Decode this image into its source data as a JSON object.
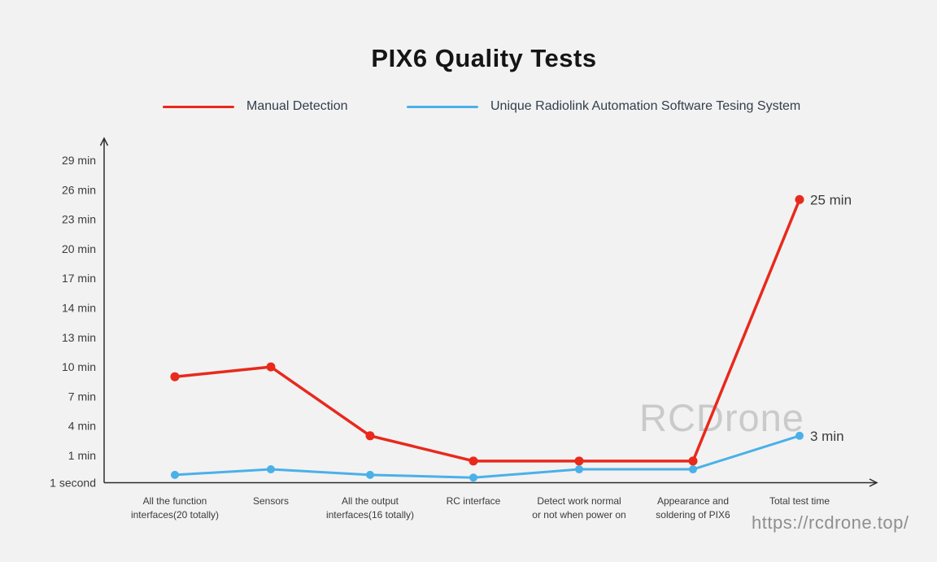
{
  "page": {
    "watermark": "RCDrone",
    "url": "https://rcdrone.top/"
  },
  "colors": {
    "background": "#f2f2f2",
    "title": "#151515",
    "text": "#3b3b3b",
    "axis": "#2c2c2c",
    "legend_text": "#333e4c",
    "watermark": "#cacaca",
    "url": "#8f8f8f"
  },
  "chart_data": {
    "type": "line",
    "title": "PIX6 Quality Tests",
    "legend_position": "top",
    "grid": false,
    "axis_arrows": true,
    "categories": [
      "All the function\ninterfaces(20 totally)",
      "Sensors",
      "All the output\ninterfaces(16 totally)",
      "RC interface",
      "Detect work normal\nor not when power on",
      "Appearance and\nsoldering of PIX6",
      "Total test time"
    ],
    "y_axis": {
      "tick_labels": [
        "1 second",
        "1 min",
        "4 min",
        "7 min",
        "10 min",
        "13 min",
        "14 min",
        "17 min",
        "20 min",
        "23 min",
        "26 min",
        "29 min"
      ],
      "tick_minutes": [
        0.0167,
        1,
        4,
        7,
        10,
        13,
        14,
        17,
        20,
        23,
        26,
        29
      ],
      "unit": "min"
    },
    "series": [
      {
        "name": "Manual Detection",
        "color": "#e8291c",
        "values_min": [
          9,
          10,
          3,
          0.8,
          0.8,
          0.8,
          25
        ]
      },
      {
        "name": "Unique Radiolink Automation Software Tesing System",
        "color": "#4bb0e8",
        "values_min": [
          0.3,
          0.5,
          0.3,
          0.2,
          0.5,
          0.5,
          3
        ]
      }
    ],
    "point_labels": [
      {
        "series": 0,
        "point": 6,
        "label": "25 min"
      },
      {
        "series": 1,
        "point": 6,
        "label": "3 min"
      }
    ]
  }
}
